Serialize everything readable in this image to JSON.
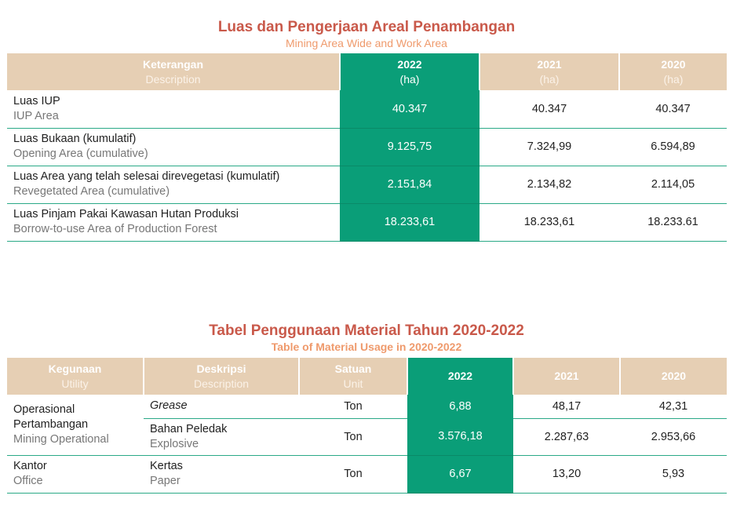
{
  "section1": {
    "title": "Luas dan Pengerjaan Areal Penambangan",
    "subtitle": "Mining Area Wide and Work Area",
    "headers": {
      "desc_id": "Keterangan",
      "desc_en": "Description",
      "y2022": "2022",
      "y2022_unit": "(ha)",
      "y2021": "2021",
      "y2021_unit": "(ha)",
      "y2020": "2020",
      "y2020_unit": "(ha)"
    },
    "rows": [
      {
        "label_id": "Luas IUP",
        "label_en": "IUP Area",
        "v2022": "40.347",
        "v2021": "40.347",
        "v2020": "40.347"
      },
      {
        "label_id": "Luas Bukaan (kumulatif)",
        "label_en": "Opening Area (cumulative)",
        "v2022": "9.125,75",
        "v2021": "7.324,99",
        "v2020": "6.594,89"
      },
      {
        "label_id": "Luas Area yang telah selesai direvegetasi (kumulatif)",
        "label_en": "Revegetated Area (cumulative)",
        "v2022": "2.151,84",
        "v2021": "2.134,82",
        "v2020": "2.114,05"
      },
      {
        "label_id": "Luas Pinjam Pakai Kawasan Hutan Produksi",
        "label_en": "Borrow-to-use Area of Production Forest",
        "v2022": "18.233,61",
        "v2021": "18.233,61",
        "v2020": "18.233.61"
      }
    ]
  },
  "section2": {
    "title": "Tabel Penggunaan Material Tahun 2020-2022",
    "subtitle": "Table of Material Usage in 2020-2022",
    "headers": {
      "utility_id": "Kegunaan",
      "utility_en": "Utility",
      "desc_id": "Deskripsi",
      "desc_en": "Description",
      "unit_id": "Satuan",
      "unit_en": "Unit",
      "y2022": "2022",
      "y2021": "2021",
      "y2020": "2020"
    },
    "groups": [
      {
        "utility_id": "Operasional Pertambangan",
        "utility_en": "Mining Operational",
        "items": [
          {
            "desc_id": "Grease",
            "desc_en": "",
            "unit": "Ton",
            "v2022": "6,88",
            "v2021": "48,17",
            "v2020": "42,31"
          },
          {
            "desc_id": "Bahan Peledak",
            "desc_en": "Explosive",
            "unit": "Ton",
            "v2022": "3.576,18",
            "v2021": "2.287,63",
            "v2020": "2.953,66"
          }
        ]
      },
      {
        "utility_id": "Kantor",
        "utility_en": "Office",
        "items": [
          {
            "desc_id": "Kertas",
            "desc_en": "Paper",
            "unit": "Ton",
            "v2022": "6,67",
            "v2021": "13,20",
            "v2020": "5,93"
          }
        ]
      }
    ]
  },
  "colors": {
    "title": "#c9594a",
    "subtitle": "#ef9a6c",
    "header_bg": "#e6cfb4",
    "highlight": "#0a9e78",
    "rule": "#2aa987"
  }
}
